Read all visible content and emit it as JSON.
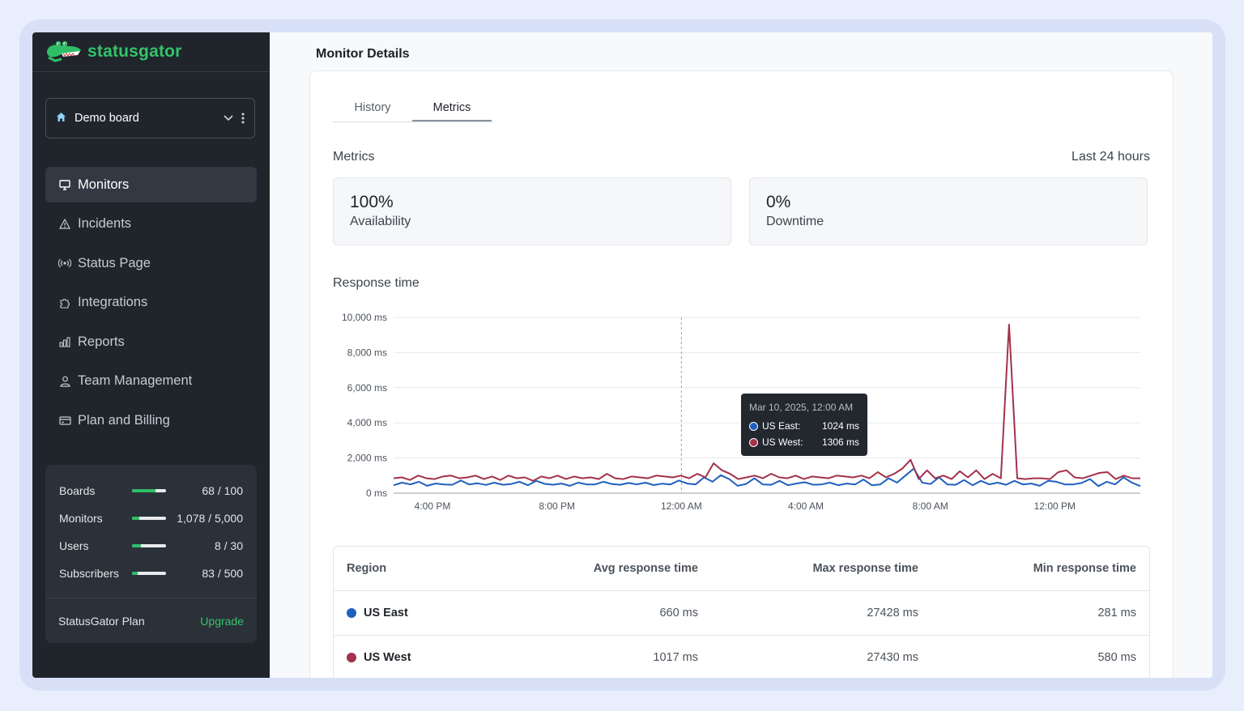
{
  "app": {
    "brand": "statusgator",
    "board": "Demo board"
  },
  "sidebar": {
    "items": [
      {
        "label": "Monitors",
        "icon": "monitor-icon"
      },
      {
        "label": "Incidents",
        "icon": "warning-icon"
      },
      {
        "label": "Status Page",
        "icon": "broadcast-icon"
      },
      {
        "label": "Integrations",
        "icon": "puzzle-icon"
      },
      {
        "label": "Reports",
        "icon": "bar-chart-icon"
      },
      {
        "label": "Team Management",
        "icon": "user-icon"
      },
      {
        "label": "Plan and Billing",
        "icon": "credit-card-icon"
      }
    ],
    "usage": [
      {
        "label": "Boards",
        "value": "68 / 100",
        "fraction": 0.68
      },
      {
        "label": "Monitors",
        "value": "1,078 / 5,000",
        "fraction": 0.2156
      },
      {
        "label": "Users",
        "value": "8 / 30",
        "fraction": 0.267
      },
      {
        "label": "Subscribers",
        "value": "83 / 500",
        "fraction": 0.166
      }
    ],
    "plan_label": "StatusGator Plan",
    "upgrade_label": "Upgrade"
  },
  "main": {
    "title": "Monitor Details",
    "tabs": [
      "History",
      "Metrics"
    ],
    "metrics_label": "Metrics",
    "range_label": "Last 24 hours",
    "availability": {
      "value": "100%",
      "label": "Availability"
    },
    "downtime": {
      "value": "0%",
      "label": "Downtime"
    },
    "response_label": "Response time",
    "tooltip": {
      "title": "Mar 10, 2025, 12:00 AM",
      "rows": [
        {
          "name": "US East:",
          "value": "1024 ms"
        },
        {
          "name": "US West:",
          "value": "1306 ms"
        }
      ]
    },
    "table": {
      "headers": [
        "Region",
        "Avg response time",
        "Max response time",
        "Min response time"
      ],
      "rows": [
        {
          "region": "US East",
          "avg": "660 ms",
          "max": "27428 ms",
          "min": "281 ms"
        },
        {
          "region": "US West",
          "avg": "1017 ms",
          "max": "27430 ms",
          "min": "580 ms"
        }
      ]
    }
  },
  "colors": {
    "east": "#1f5fbf",
    "west": "#a3324a",
    "accent": "#33c36a"
  },
  "chart_data": {
    "type": "line",
    "title": "Response time",
    "ylabel": "ms",
    "ylim": [
      0,
      10000
    ],
    "yticks": [
      "10,000 ms",
      "8,000 ms",
      "6,000 ms",
      "4,000 ms",
      "2,000 ms",
      "0 ms"
    ],
    "ytick_values": [
      10000,
      8000,
      6000,
      4000,
      2000,
      0
    ],
    "xticks": [
      "4:00 PM",
      "8:00 PM",
      "12:00 AM",
      "4:00 AM",
      "8:00 AM",
      "12:00 PM"
    ],
    "xlim_hours": [
      -9.25,
      14.75
    ],
    "xtick_hours": [
      -8,
      -4,
      0,
      4,
      8,
      12
    ],
    "highlight_hour": 0,
    "series": [
      {
        "name": "US East",
        "color": "#1f5fbf",
        "values": [
          450,
          600,
          500,
          650,
          420,
          550,
          500,
          480,
          720,
          500,
          560,
          470,
          600,
          480,
          520,
          650,
          450,
          700,
          530,
          480,
          550,
          420,
          600,
          500,
          500,
          650,
          520,
          480,
          580,
          500,
          600,
          460,
          540,
          500,
          720,
          550,
          500,
          900,
          650,
          1024,
          800,
          420,
          520,
          850,
          500,
          480,
          700,
          450,
          550,
          620,
          480,
          500,
          600,
          450,
          550,
          500,
          780,
          450,
          500,
          850,
          600,
          1000,
          1400,
          600,
          520,
          900,
          500,
          480,
          750,
          450,
          700,
          500,
          600,
          480,
          700,
          500,
          550,
          420,
          700,
          650,
          500,
          500,
          580,
          800,
          400,
          650,
          500,
          900,
          600,
          400
        ]
      },
      {
        "name": "US West",
        "color": "#a3324a",
        "values": [
          850,
          900,
          750,
          1000,
          850,
          800,
          950,
          1000,
          850,
          900,
          1000,
          800,
          950,
          750,
          1000,
          850,
          900,
          700,
          950,
          850,
          1000,
          800,
          950,
          850,
          900,
          800,
          1100,
          850,
          800,
          950,
          900,
          850,
          1000,
          950,
          900,
          1000,
          850,
          1100,
          900,
          1700,
          1306,
          1100,
          800,
          900,
          1000,
          850,
          1100,
          900,
          850,
          1000,
          800,
          950,
          900,
          850,
          1000,
          950,
          900,
          1000,
          850,
          1200,
          900,
          1100,
          1400,
          1900,
          800,
          1300,
          850,
          1000,
          800,
          1250,
          900,
          1300,
          800,
          1100,
          850,
          9600,
          850,
          800,
          850,
          850,
          800,
          1200,
          1300,
          900,
          850,
          1000,
          1150,
          1200,
          800,
          1000,
          850,
          850
        ]
      }
    ]
  }
}
